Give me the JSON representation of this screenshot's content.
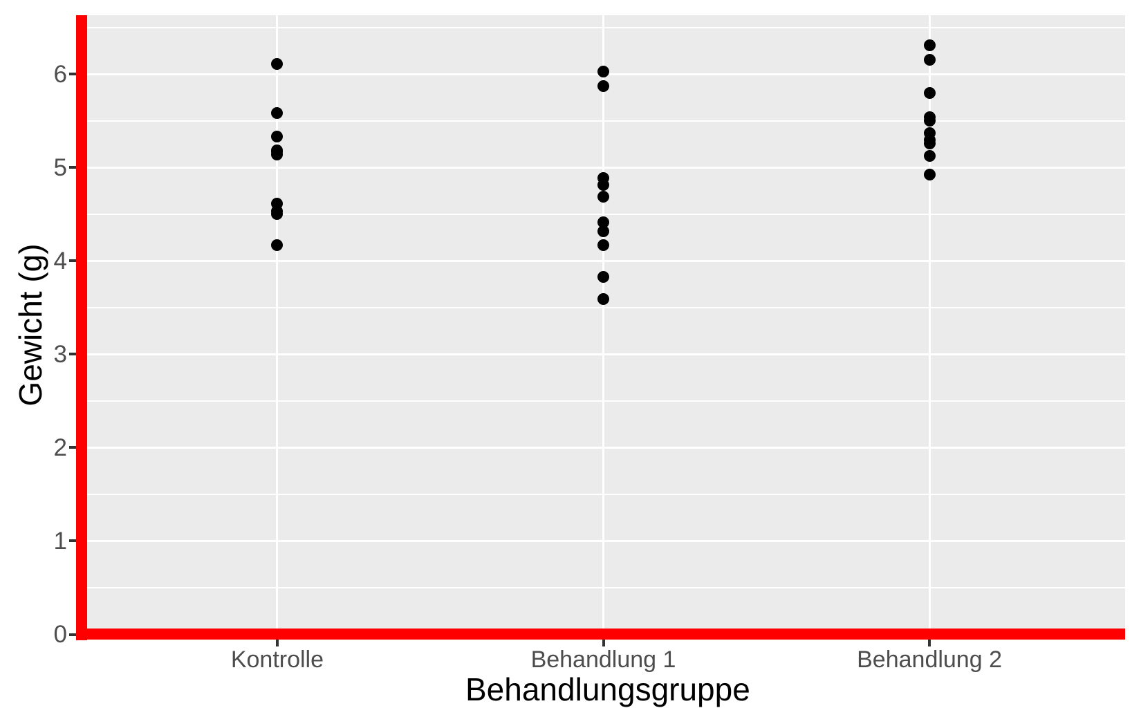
{
  "chart_data": {
    "type": "scatter",
    "title": "",
    "xlabel": "Behandlungsgruppe",
    "ylabel": "Gewicht (g)",
    "categories": [
      "Kontrolle",
      "Behandlung 1",
      "Behandlung 2"
    ],
    "series": [
      {
        "name": "Kontrolle",
        "values": [
          4.17,
          5.58,
          5.18,
          6.11,
          4.5,
          4.61,
          5.17,
          4.53,
          5.33,
          5.14
        ]
      },
      {
        "name": "Behandlung 1",
        "values": [
          4.81,
          4.17,
          4.41,
          3.59,
          5.87,
          3.83,
          6.03,
          4.89,
          4.32,
          4.69
        ]
      },
      {
        "name": "Behandlung 2",
        "values": [
          6.31,
          5.12,
          5.54,
          5.5,
          5.37,
          5.29,
          4.92,
          6.15,
          5.8,
          5.26
        ]
      }
    ],
    "y_ticks": [
      0,
      1,
      2,
      3,
      4,
      5,
      6
    ],
    "y_tick_labels": [
      "0",
      "1",
      "2",
      "3",
      "4",
      "5",
      "6"
    ],
    "ylim": [
      0,
      6.63
    ],
    "y_minor_step": 0.5,
    "grid": true,
    "legend_position": "none",
    "colors": {
      "panel_background": "#EBEBEB",
      "grid": "#FFFFFF",
      "point": "#000000",
      "axis_line": "#FF0000",
      "tick_mark": "#333333",
      "tick_label": "#4D4D4D",
      "axis_title": "#000000",
      "page_background": "#FFFFFF"
    }
  }
}
